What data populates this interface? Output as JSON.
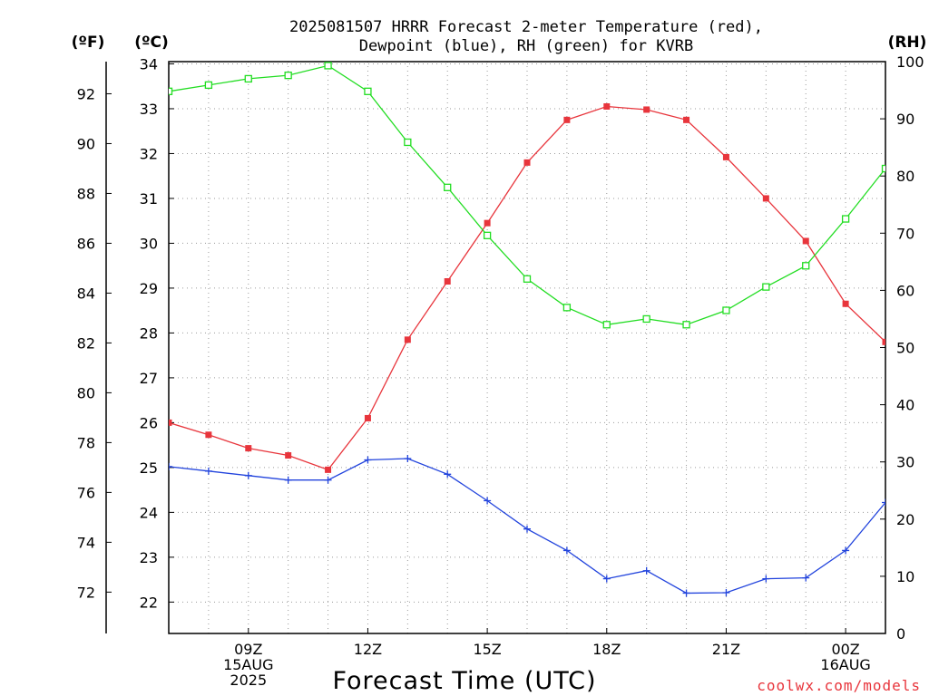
{
  "chart_data": {
    "type": "line",
    "title_line1": "2025081507 HRRR Forecast 2-meter Temperature (red),",
    "title_line2": "Dewpoint (blue), RH (green) for KVRB",
    "xlabel": "Forecast Time (UTC)",
    "watermark": "coolwx.com/models",
    "units": {
      "fahrenheit": "(ºF)",
      "celsius": "(ºC)",
      "rh": "(RH)"
    },
    "x": [
      7,
      8,
      9,
      10,
      11,
      12,
      13,
      14,
      15,
      16,
      17,
      18,
      19,
      20,
      21,
      22,
      23,
      24,
      25
    ],
    "xlim": [
      7,
      25
    ],
    "ylim_celsius": [
      21.3,
      34.05
    ],
    "ylim_fahrenheit": [
      70.34,
      93.29
    ],
    "ylim_rh": [
      0,
      100
    ],
    "xticks": [
      {
        "x": 9,
        "lines": [
          "09Z",
          "15AUG",
          "2025"
        ]
      },
      {
        "x": 12,
        "lines": [
          "12Z"
        ]
      },
      {
        "x": 15,
        "lines": [
          "15Z"
        ]
      },
      {
        "x": 18,
        "lines": [
          "18Z"
        ]
      },
      {
        "x": 21,
        "lines": [
          "21Z"
        ]
      },
      {
        "x": 24,
        "lines": [
          "00Z",
          "16AUG"
        ]
      }
    ],
    "celsius_ticks": [
      22,
      23,
      24,
      25,
      26,
      27,
      28,
      29,
      30,
      31,
      32,
      33,
      34
    ],
    "fahrenheit_ticks": [
      72,
      74,
      76,
      78,
      80,
      82,
      84,
      86,
      88,
      90,
      92
    ],
    "rh_ticks": [
      0,
      10,
      20,
      30,
      40,
      50,
      60,
      70,
      80,
      90,
      100
    ],
    "grid": true,
    "series": [
      {
        "key": "temperature",
        "axis": "celsius",
        "color": "#e8353c",
        "marker": "filled-square",
        "values": [
          26.0,
          25.73,
          25.43,
          25.27,
          24.95,
          26.1,
          27.85,
          29.15,
          30.45,
          31.8,
          32.75,
          33.05,
          32.98,
          32.75,
          31.92,
          31.0,
          30.05,
          28.65,
          27.8
        ]
      },
      {
        "key": "dewpoint",
        "axis": "celsius",
        "color": "#2244dd",
        "marker": "plus",
        "values": [
          25.02,
          24.92,
          24.82,
          24.72,
          24.72,
          25.17,
          25.2,
          24.85,
          24.26,
          23.63,
          23.15,
          22.52,
          22.7,
          22.2,
          22.21,
          22.52,
          22.54,
          23.15,
          24.22
        ]
      },
      {
        "key": "rh",
        "axis": "rh",
        "color": "#22dd22",
        "marker": "open-square",
        "values": [
          94.8,
          95.9,
          97.0,
          97.6,
          99.3,
          94.8,
          85.9,
          78.0,
          69.6,
          62.0,
          57.0,
          54.0,
          55.0,
          54.0,
          56.5,
          60.6,
          64.3,
          72.5,
          81.3
        ]
      }
    ]
  }
}
